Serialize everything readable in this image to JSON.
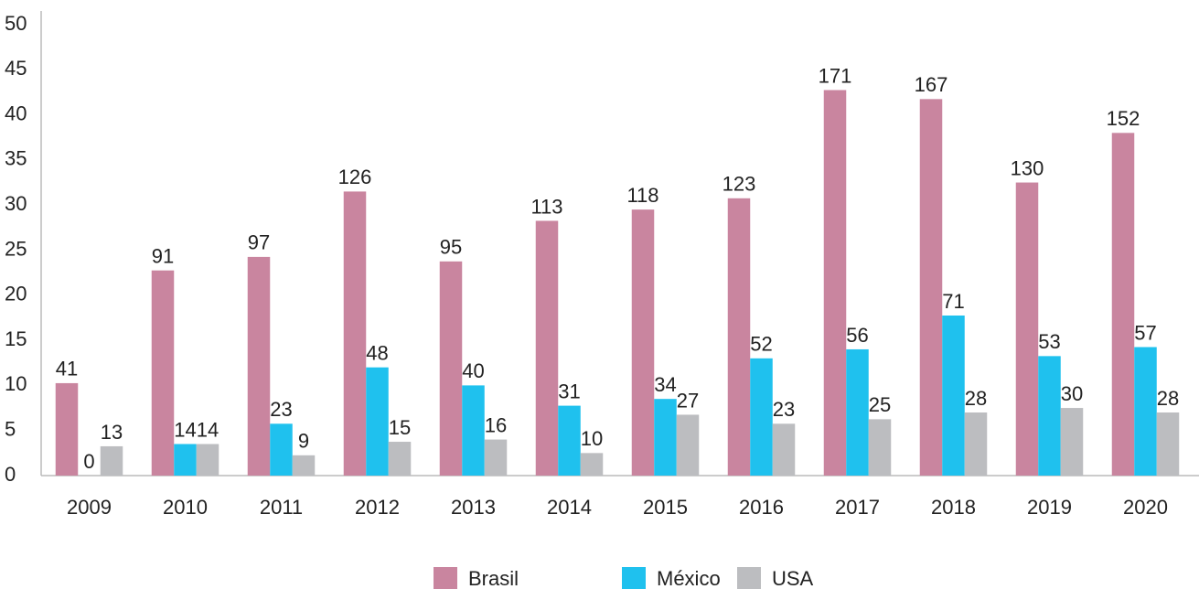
{
  "chart_data": {
    "type": "bar",
    "categories": [
      "2009",
      "2010",
      "2011",
      "2012",
      "2013",
      "2014",
      "2015",
      "2016",
      "2017",
      "2018",
      "2019",
      "2020"
    ],
    "series": [
      {
        "name": "Brasil",
        "color": "#c9859f",
        "values": [
          10.25,
          22.75,
          24.25,
          31.5,
          23.75,
          28.25,
          29.5,
          30.75,
          42.75,
          41.75,
          32.5,
          38
        ],
        "value_labels": [
          "41",
          "91",
          "97",
          "126",
          "95",
          "113",
          "118",
          "123",
          "171",
          "167",
          "130",
          "152"
        ]
      },
      {
        "name": "México",
        "color": "#1fc1ee",
        "values": [
          0,
          3.5,
          5.75,
          12,
          10,
          7.75,
          8.5,
          13,
          14,
          17.75,
          13.25,
          14.25
        ],
        "value_labels": [
          "0",
          "14",
          "23",
          "48",
          "40",
          "31",
          "34",
          "52",
          "56",
          "71",
          "53",
          "57"
        ]
      },
      {
        "name": "USA",
        "color": "#bcbdc0",
        "values": [
          3.25,
          3.5,
          2.25,
          3.75,
          4,
          2.5,
          6.75,
          5.75,
          6.25,
          7,
          7.5,
          7
        ],
        "value_labels": [
          "13",
          "14",
          "9",
          "15",
          "16",
          "10",
          "27",
          "23",
          "25",
          "28",
          "30",
          "28"
        ]
      }
    ],
    "ylim": [
      0,
      50
    ],
    "yticks": [
      0,
      5,
      10,
      15,
      20,
      25,
      30,
      35,
      40,
      45,
      50
    ],
    "grid": false,
    "legend": "bottom"
  }
}
